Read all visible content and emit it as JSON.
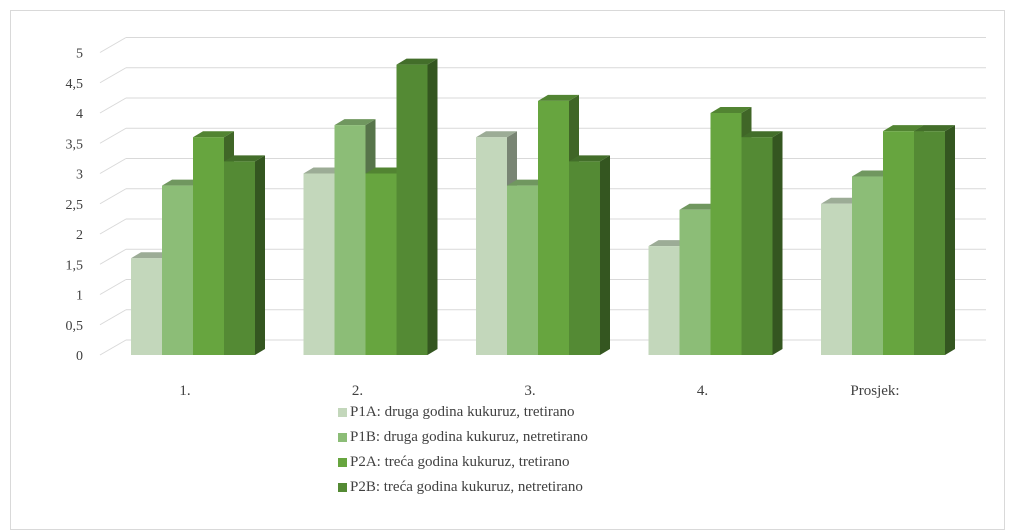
{
  "chart_data": {
    "type": "bar",
    "categories": [
      "1.",
      "2.",
      "3.",
      "4.",
      "Prosjek:"
    ],
    "series": [
      {
        "name": "P1A: druga godina kukuruz, tretirano",
        "values": [
          1.6,
          3.0,
          3.6,
          1.8,
          2.5
        ],
        "color": "#c3d7bb"
      },
      {
        "name": "P1B: druga godina kukuruz, netretirano",
        "values": [
          2.8,
          3.8,
          2.8,
          2.4,
          2.95
        ],
        "color": "#8cbd77"
      },
      {
        "name": "P2A: treća godina kukuruz, tretirano",
        "values": [
          3.6,
          3.0,
          4.2,
          4.0,
          3.7
        ],
        "color": "#67a53f"
      },
      {
        "name": "P2B: treća godina kukuruz, netretirano",
        "values": [
          3.2,
          4.8,
          3.2,
          3.6,
          3.7
        ],
        "color": "#548a34"
      }
    ],
    "y_ticks": [
      "0",
      "0,5",
      "1",
      "1,5",
      "2",
      "2,5",
      "3",
      "3,5",
      "4",
      "4,5",
      "5"
    ],
    "ylim": [
      0,
      5
    ],
    "grid": true,
    "legend_position": "bottom"
  }
}
